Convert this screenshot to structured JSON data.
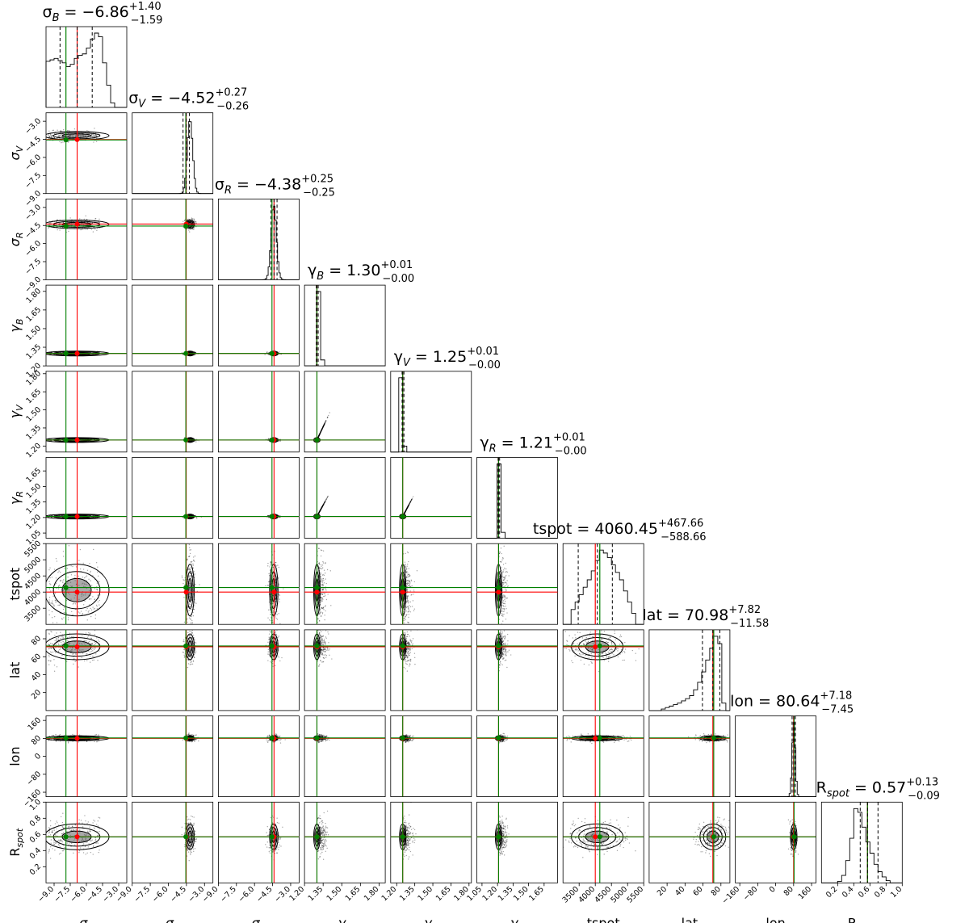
{
  "chart_data": {
    "type": "corner",
    "parameters": [
      {
        "key": "sB",
        "name": "σ",
        "sub": "B",
        "range": [
          -9.75,
          -2.25
        ],
        "ticks": [
          -9.0,
          -7.5,
          -6.0,
          -4.5,
          -3.0
        ],
        "tick_labels": [
          "−9.0",
          "−7.5",
          "−6.0",
          "−4.5",
          "−3.0"
        ],
        "median": -6.86,
        "plus": "+1.40",
        "minus": "−1.59",
        "title_value": "−6.86",
        "quantiles": [
          -8.45,
          -5.46
        ],
        "truth_red": -6.86,
        "truth_green": -7.9,
        "center": -6.86,
        "spread": 1.5,
        "axis_label_main": "σ",
        "axis_label_sub": "B"
      },
      {
        "key": "sV",
        "name": "σ",
        "sub": "V",
        "range": [
          -9.0,
          -2.3
        ],
        "ticks": [
          -9.0,
          -7.5,
          -6.0,
          -4.5,
          -3.0
        ],
        "tick_labels": [
          "−9.0",
          "−7.5",
          "−6.0",
          "−4.5",
          "−3.0"
        ],
        "median": -4.52,
        "plus": "+0.27",
        "minus": "−0.26",
        "title_value": "−4.52",
        "quantiles": [
          -4.78,
          -4.25
        ],
        "truth_red": -4.52,
        "truth_green": -4.55,
        "center": -4.2,
        "spread": 0.22,
        "axis_label_main": "σ",
        "axis_label_sub": "V"
      },
      {
        "key": "sR",
        "name": "σ",
        "sub": "R",
        "range": [
          -9.0,
          -2.3
        ],
        "ticks": [
          -9.0,
          -7.5,
          -6.0,
          -4.5,
          -3.0
        ],
        "tick_labels": [
          "−9.0",
          "−7.5",
          "−6.0",
          "−4.5",
          "−3.0"
        ],
        "median": -4.38,
        "plus": "+0.25",
        "minus": "−0.25",
        "title_value": "−4.38",
        "quantiles": [
          -4.63,
          -4.13
        ],
        "truth_red": -4.38,
        "truth_green": -4.55,
        "center": -4.4,
        "spread": 0.22,
        "axis_label_main": "σ",
        "axis_label_sub": "R"
      },
      {
        "key": "gB",
        "name": "γ",
        "sub": "B",
        "range": [
          1.2,
          1.85
        ],
        "ticks": [
          1.2,
          1.35,
          1.5,
          1.65,
          1.8
        ],
        "tick_labels": [
          "1.20",
          "1.35",
          "1.50",
          "1.65",
          "1.80"
        ],
        "median": 1.3,
        "plus": "+0.01",
        "minus": "−0.00",
        "title_value": "1.30",
        "quantiles": [
          1.295,
          1.31
        ],
        "truth_red": 1.3,
        "truth_green": 1.3,
        "center": 1.3,
        "spread": 0.006,
        "axis_label_main": "γ",
        "axis_label_sub": "B"
      },
      {
        "key": "gV",
        "name": "γ",
        "sub": "V",
        "range": [
          1.15,
          1.82
        ],
        "ticks": [
          1.2,
          1.35,
          1.5,
          1.65,
          1.8
        ],
        "tick_labels": [
          "1.20",
          "1.35",
          "1.50",
          "1.65",
          "1.80"
        ],
        "median": 1.25,
        "plus": "+0.01",
        "minus": "−0.00",
        "title_value": "1.25",
        "quantiles": [
          1.245,
          1.26
        ],
        "truth_red": 1.25,
        "truth_green": 1.25,
        "center": 1.25,
        "spread": 0.006,
        "axis_label_main": "γ",
        "axis_label_sub": "V"
      },
      {
        "key": "gR",
        "name": "γ",
        "sub": "R",
        "range": [
          1.0,
          1.78
        ],
        "ticks": [
          1.05,
          1.2,
          1.35,
          1.5,
          1.65
        ],
        "tick_labels": [
          "1.05",
          "1.20",
          "1.35",
          "1.50",
          "1.65"
        ],
        "median": 1.21,
        "plus": "+0.01",
        "minus": "−0.00",
        "title_value": "1.21",
        "quantiles": [
          1.205,
          1.22
        ],
        "truth_red": 1.21,
        "truth_green": 1.21,
        "center": 1.21,
        "spread": 0.006,
        "axis_label_main": "γ",
        "axis_label_sub": "R"
      },
      {
        "key": "tspot",
        "name": "tspot",
        "sub": "",
        "range": [
          3000,
          5500
        ],
        "ticks": [
          3500,
          4000,
          4500,
          5000,
          5500
        ],
        "tick_labels": [
          "3500",
          "4000",
          "4500",
          "5000",
          "5500"
        ],
        "median": 4060.45,
        "plus": "+467.66",
        "minus": "−588.66",
        "title_value": "4060.45",
        "quantiles": [
          3471.8,
          4528.1
        ],
        "truth_red": 4000,
        "truth_green": 4140,
        "center": 4060,
        "spread": 500,
        "axis_label_main": "tspot",
        "axis_label_sub": ""
      },
      {
        "key": "lat",
        "name": "lat",
        "sub": "",
        "range": [
          0,
          90
        ],
        "ticks": [
          20,
          40,
          60,
          80
        ],
        "tick_labels": [
          "20",
          "40",
          "60",
          "80"
        ],
        "median": 70.98,
        "plus": "+7.82",
        "minus": "−11.58",
        "title_value": "70.98",
        "quantiles": [
          59.4,
          78.8
        ],
        "truth_red": 71,
        "truth_green": 72,
        "center": 71,
        "spread": 9,
        "axis_label_main": "lat",
        "axis_label_sub": ""
      },
      {
        "key": "lon",
        "name": "lon",
        "sub": "",
        "range": [
          -180,
          180
        ],
        "ticks": [
          -160,
          -80,
          0,
          80,
          160
        ],
        "tick_labels": [
          "−160",
          "−80",
          "0",
          "80",
          "160"
        ],
        "median": 80.64,
        "plus": "+7.18",
        "minus": "−7.45",
        "title_value": "80.64",
        "quantiles": [
          73.2,
          87.8
        ],
        "truth_red": 80,
        "truth_green": 82,
        "center": 80.6,
        "spread": 7,
        "axis_label_main": "lon",
        "axis_label_sub": ""
      },
      {
        "key": "Rspot",
        "name": "R",
        "sub": "spot",
        "range": [
          0.0,
          1.0
        ],
        "ticks": [
          0.2,
          0.4,
          0.6,
          0.8,
          1.0
        ],
        "tick_labels": [
          "0.2",
          "0.4",
          "0.6",
          "0.8",
          "1.0"
        ],
        "median": 0.57,
        "plus": "+0.13",
        "minus": "−0.09",
        "title_value": "0.57",
        "quantiles": [
          0.48,
          0.7
        ],
        "truth_red": 0.57,
        "truth_green": 0.57,
        "center": 0.57,
        "spread": 0.1,
        "axis_label_main": "R",
        "axis_label_sub": "spot"
      }
    ],
    "y_tick_overrides": {
      "sV": {
        "ticks": [
          -9.0,
          -7.5,
          -6.0,
          -4.5,
          -3.0
        ],
        "tick_labels": [
          "−9.0",
          "−7.5",
          "−6.0",
          "−4.5",
          "−3.0"
        ]
      },
      "sR": {
        "ticks": [
          -9.0,
          -7.5,
          -6.0,
          -4.5,
          -3.0
        ],
        "tick_labels": [
          "−9.0",
          "−7.5",
          "−6.0",
          "−4.5",
          "−3.0"
        ]
      },
      "gB": {
        "ticks": [
          1.2,
          1.35,
          1.5,
          1.65,
          1.8
        ],
        "tick_labels": [
          "1.20",
          "1.35",
          "1.50",
          "1.65",
          "1.80"
        ]
      },
      "gV": {
        "ticks": [
          1.2,
          1.35,
          1.5,
          1.65,
          1.8
        ],
        "tick_labels": [
          "1.20",
          "1.35",
          "1.50",
          "1.65",
          "1.80"
        ]
      },
      "gR": {
        "ticks": [
          1.05,
          1.2,
          1.35,
          1.5,
          1.65
        ],
        "tick_labels": [
          "1.05",
          "1.20",
          "1.35",
          "1.50",
          "1.65"
        ]
      },
      "tspot": {
        "ticks": [
          3500,
          4000,
          4500,
          5000,
          5500
        ],
        "tick_labels": [
          "3500",
          "4000",
          "4500",
          "5000",
          "5500"
        ]
      },
      "lat": {
        "ticks": [
          20,
          40,
          60,
          80
        ],
        "tick_labels": [
          "20",
          "40",
          "60",
          "80"
        ]
      },
      "lon": {
        "ticks": [
          -160,
          -80,
          0,
          80,
          160
        ],
        "tick_labels": [
          "−160",
          "−80",
          "0",
          "80",
          "160"
        ]
      },
      "Rspot": {
        "ticks": [
          0.2,
          0.4,
          0.6,
          0.8,
          1.0
        ],
        "tick_labels": [
          "0.2",
          "0.4",
          "0.6",
          "0.8",
          "1.0"
        ]
      }
    },
    "histogram_shapes": {
      "sB": [
        0.62,
        0.64,
        0.66,
        0.63,
        0.6,
        0.55,
        0.58,
        0.66,
        0.7,
        0.72,
        0.8,
        0.92,
        1.0,
        0.95,
        0.6,
        0.3,
        0.06,
        0.0,
        0.0,
        0.0
      ],
      "tspot": [
        0.0,
        0.0,
        0.2,
        0.3,
        0.4,
        0.5,
        0.6,
        0.72,
        0.86,
        1.0,
        0.96,
        0.9,
        0.8,
        0.7,
        0.6,
        0.45,
        0.3,
        0.15,
        0.0,
        0.0
      ],
      "lat": [
        0.0,
        0.0,
        0.0,
        0.02,
        0.04,
        0.06,
        0.08,
        0.1,
        0.13,
        0.16,
        0.2,
        0.28,
        0.38,
        0.52,
        0.68,
        0.84,
        1.0,
        0.9,
        0.1,
        0.0
      ],
      "Rspot": [
        0.0,
        0.0,
        0.0,
        0.0,
        0.02,
        0.1,
        0.3,
        0.6,
        1.0,
        0.95,
        0.75,
        0.55,
        0.4,
        0.25,
        0.15,
        0.08,
        0.03,
        0.0,
        0.0,
        0.0
      ]
    },
    "colors": {
      "red_line": "#ff0000",
      "green_line": "#008000",
      "median_line": "#000000",
      "points": "#000000"
    }
  }
}
